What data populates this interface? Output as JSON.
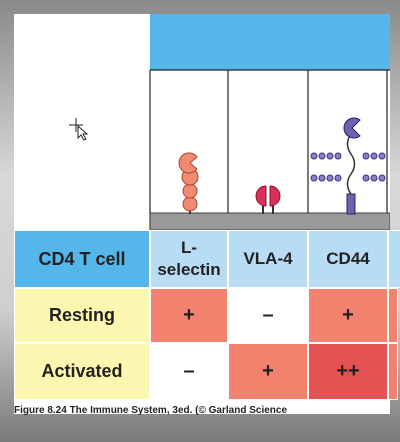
{
  "table": {
    "header": [
      "CD4 T cell",
      "L-selectin",
      "VLA-4",
      "CD44"
    ],
    "rows": [
      [
        "Resting",
        "+",
        "–",
        "+"
      ],
      [
        "Activated",
        "–",
        "+",
        "++"
      ]
    ]
  },
  "caption": "Figure 8.24 The Immune System, 3ed. (© Garland Science"
}
